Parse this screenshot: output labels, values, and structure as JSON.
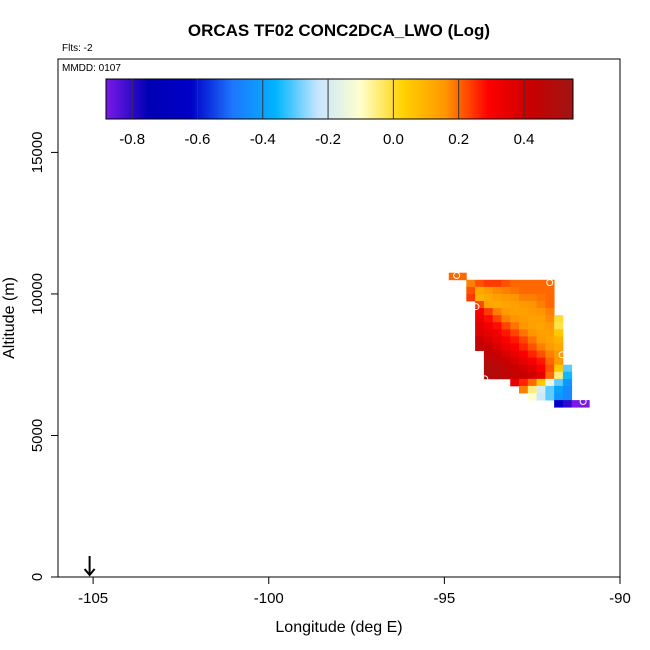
{
  "chart_data": {
    "type": "heatmap",
    "title": "ORCAS TF02 CONC2DCA_LWO (Log)",
    "flights_note": "Flts: -2",
    "date_note": "MMDD: 0107",
    "xlabel": "Longitude (deg E)",
    "ylabel": "Altitude (m)",
    "xlim": [
      -106,
      -90
    ],
    "ylim": [
      0,
      18300
    ],
    "x_ticks": [
      -105,
      -100,
      -95,
      -90
    ],
    "x_tick_labels": [
      "-105",
      "-100",
      "-95",
      "-90"
    ],
    "y_ticks": [
      0,
      5000,
      10000,
      15000
    ],
    "y_tick_labels": [
      "0",
      "5000",
      "10000",
      "15000"
    ],
    "colorbar": {
      "range": [
        -0.88,
        0.55
      ],
      "ticks": [
        -0.8,
        -0.6,
        -0.4,
        -0.2,
        0.0,
        0.2,
        0.4
      ],
      "tick_labels": [
        "-0.8",
        "-0.6",
        "-0.4",
        "-0.2",
        "0.0",
        "0.2",
        "0.4"
      ],
      "colors": [
        "#7a1ae8",
        "#0000b4",
        "#0000c8",
        "#1e78ff",
        "#00b4ff",
        "#c8e6ff",
        "#ffffcc",
        "#ffd200",
        "#ff9600",
        "#ff0000",
        "#c80000",
        "#a01414"
      ]
    },
    "marker": {
      "x": -105.1,
      "label": "takeoff location arrow"
    },
    "cell_size": {
      "dx": 0.25,
      "dy": 250
    },
    "cells": [
      [
        -94.75,
        10625,
        0.2
      ],
      [
        -94.5,
        10625,
        0.2
      ],
      [
        -94.25,
        10375,
        0.18
      ],
      [
        -94.0,
        10375,
        0.22
      ],
      [
        -93.75,
        10375,
        0.24
      ],
      [
        -93.5,
        10375,
        0.24
      ],
      [
        -93.25,
        10375,
        0.22
      ],
      [
        -93.0,
        10375,
        0.2
      ],
      [
        -92.75,
        10375,
        0.2
      ],
      [
        -92.5,
        10375,
        0.2
      ],
      [
        -92.25,
        10375,
        0.2
      ],
      [
        -92.0,
        10375,
        0.2
      ],
      [
        -94.25,
        10125,
        0.22
      ],
      [
        -94.0,
        10125,
        0.12
      ],
      [
        -93.75,
        10125,
        0.15
      ],
      [
        -93.5,
        10125,
        0.17
      ],
      [
        -93.25,
        10125,
        0.18
      ],
      [
        -93.0,
        10125,
        0.19
      ],
      [
        -92.75,
        10125,
        0.2
      ],
      [
        -92.5,
        10125,
        0.2
      ],
      [
        -92.25,
        10125,
        0.2
      ],
      [
        -92.0,
        10125,
        0.2
      ],
      [
        -94.25,
        9875,
        0.24
      ],
      [
        -94.0,
        9875,
        0.1
      ],
      [
        -93.75,
        9875,
        0.12
      ],
      [
        -93.5,
        9875,
        0.14
      ],
      [
        -93.25,
        9875,
        0.15
      ],
      [
        -93.0,
        9875,
        0.16
      ],
      [
        -92.75,
        9875,
        0.18
      ],
      [
        -92.5,
        9875,
        0.18
      ],
      [
        -92.25,
        9875,
        0.19
      ],
      [
        -92.0,
        9875,
        0.2
      ],
      [
        -94.0,
        9625,
        0.23
      ],
      [
        -93.75,
        9625,
        0.13
      ],
      [
        -93.5,
        9625,
        0.12
      ],
      [
        -93.25,
        9625,
        0.13
      ],
      [
        -93.0,
        9625,
        0.14
      ],
      [
        -92.75,
        9625,
        0.15
      ],
      [
        -92.5,
        9625,
        0.16
      ],
      [
        -92.25,
        9625,
        0.18
      ],
      [
        -92.0,
        9625,
        0.2
      ],
      [
        -94.0,
        9375,
        0.3
      ],
      [
        -93.75,
        9375,
        0.24
      ],
      [
        -93.5,
        9375,
        0.18
      ],
      [
        -93.25,
        9375,
        0.15
      ],
      [
        -93.0,
        9375,
        0.14
      ],
      [
        -92.75,
        9375,
        0.14
      ],
      [
        -92.5,
        9375,
        0.15
      ],
      [
        -92.25,
        9375,
        0.16
      ],
      [
        -92.0,
        9375,
        0.18
      ],
      [
        -94.0,
        9125,
        0.34
      ],
      [
        -93.75,
        9125,
        0.28
      ],
      [
        -93.5,
        9125,
        0.23
      ],
      [
        -93.25,
        9125,
        0.18
      ],
      [
        -93.0,
        9125,
        0.16
      ],
      [
        -92.75,
        9125,
        0.15
      ],
      [
        -92.5,
        9125,
        0.14
      ],
      [
        -92.25,
        9125,
        0.14
      ],
      [
        -92.0,
        9125,
        0.17
      ],
      [
        -91.75,
        9125,
        0.0
      ],
      [
        -94.0,
        8875,
        0.36
      ],
      [
        -93.75,
        8875,
        0.32
      ],
      [
        -93.5,
        8875,
        0.28
      ],
      [
        -93.25,
        8875,
        0.23
      ],
      [
        -93.0,
        8875,
        0.19
      ],
      [
        -92.75,
        8875,
        0.16
      ],
      [
        -92.5,
        8875,
        0.14
      ],
      [
        -92.25,
        8875,
        0.13
      ],
      [
        -92.0,
        8875,
        0.15
      ],
      [
        -91.75,
        8875,
        -0.02
      ],
      [
        -94.0,
        8625,
        0.38
      ],
      [
        -93.75,
        8625,
        0.35
      ],
      [
        -93.5,
        8625,
        0.32
      ],
      [
        -93.25,
        8625,
        0.27
      ],
      [
        -93.0,
        8625,
        0.23
      ],
      [
        -92.75,
        8625,
        0.19
      ],
      [
        -92.5,
        8625,
        0.16
      ],
      [
        -92.25,
        8625,
        0.14
      ],
      [
        -92.0,
        8625,
        0.14
      ],
      [
        -91.75,
        8625,
        0.05
      ],
      [
        -94.0,
        8375,
        0.42
      ],
      [
        -93.75,
        8375,
        0.38
      ],
      [
        -93.5,
        8375,
        0.34
      ],
      [
        -93.25,
        8375,
        0.3
      ],
      [
        -93.0,
        8375,
        0.27
      ],
      [
        -92.75,
        8375,
        0.23
      ],
      [
        -92.5,
        8375,
        0.19
      ],
      [
        -92.25,
        8375,
        0.15
      ],
      [
        -92.0,
        8375,
        0.13
      ],
      [
        -91.75,
        8375,
        0.1
      ],
      [
        -94.0,
        8125,
        0.45
      ],
      [
        -93.75,
        8125,
        0.42
      ],
      [
        -93.5,
        8125,
        0.38
      ],
      [
        -93.25,
        8125,
        0.33
      ],
      [
        -93.0,
        8125,
        0.3
      ],
      [
        -92.75,
        8125,
        0.26
      ],
      [
        -92.5,
        8125,
        0.22
      ],
      [
        -92.25,
        8125,
        0.18
      ],
      [
        -92.0,
        8125,
        0.15
      ],
      [
        -91.75,
        8125,
        0.12
      ],
      [
        -93.75,
        7875,
        0.44
      ],
      [
        -93.5,
        7875,
        0.42
      ],
      [
        -93.25,
        7875,
        0.38
      ],
      [
        -93.0,
        7875,
        0.34
      ],
      [
        -92.75,
        7875,
        0.3
      ],
      [
        -92.5,
        7875,
        0.26
      ],
      [
        -92.25,
        7875,
        0.22
      ],
      [
        -92.0,
        7875,
        0.18
      ],
      [
        -91.75,
        7875,
        0.15
      ],
      [
        -93.75,
        7625,
        0.48
      ],
      [
        -93.5,
        7625,
        0.45
      ],
      [
        -93.25,
        7625,
        0.42
      ],
      [
        -93.0,
        7625,
        0.38
      ],
      [
        -92.75,
        7625,
        0.34
      ],
      [
        -92.5,
        7625,
        0.31
      ],
      [
        -92.25,
        7625,
        0.27
      ],
      [
        -92.0,
        7625,
        0.2
      ],
      [
        -91.75,
        7625,
        0.15
      ],
      [
        -93.75,
        7375,
        0.5
      ],
      [
        -93.5,
        7375,
        0.48
      ],
      [
        -93.25,
        7375,
        0.45
      ],
      [
        -93.0,
        7375,
        0.42
      ],
      [
        -92.75,
        7375,
        0.4
      ],
      [
        -92.5,
        7375,
        0.36
      ],
      [
        -92.25,
        7375,
        0.3
      ],
      [
        -92.0,
        7375,
        0.22
      ],
      [
        -91.75,
        7375,
        0.05
      ],
      [
        -91.5,
        7375,
        -0.3
      ],
      [
        -93.75,
        7125,
        0.5
      ],
      [
        -93.5,
        7125,
        0.48
      ],
      [
        -93.25,
        7125,
        0.46
      ],
      [
        -93.0,
        7125,
        0.43
      ],
      [
        -92.75,
        7125,
        0.42
      ],
      [
        -92.5,
        7125,
        0.4
      ],
      [
        -92.25,
        7125,
        0.35
      ],
      [
        -92.0,
        7125,
        0.2
      ],
      [
        -91.75,
        7125,
        -0.05
      ],
      [
        -91.5,
        7125,
        -0.35
      ],
      [
        -93.0,
        6875,
        0.34
      ],
      [
        -92.75,
        6875,
        0.26
      ],
      [
        -92.5,
        6875,
        0.2
      ],
      [
        -92.25,
        6875,
        0.05
      ],
      [
        -92.0,
        6875,
        -0.15
      ],
      [
        -91.75,
        6875,
        -0.3
      ],
      [
        -91.5,
        6875,
        -0.42
      ],
      [
        -92.75,
        6625,
        0.18
      ],
      [
        -92.5,
        6625,
        -0.05
      ],
      [
        -92.25,
        6625,
        -0.2
      ],
      [
        -92.0,
        6625,
        -0.3
      ],
      [
        -91.75,
        6625,
        -0.4
      ],
      [
        -91.5,
        6625,
        -0.45
      ],
      [
        -92.5,
        6375,
        -0.1
      ],
      [
        -92.25,
        6375,
        -0.22
      ],
      [
        -92.0,
        6375,
        -0.3
      ],
      [
        -91.75,
        6375,
        -0.42
      ],
      [
        -91.5,
        6375,
        -0.45
      ],
      [
        -91.75,
        6125,
        -0.62
      ],
      [
        -91.5,
        6125,
        -0.8
      ],
      [
        -91.25,
        6125,
        -0.88
      ],
      [
        -91.0,
        6125,
        -0.88
      ]
    ],
    "open_circles": [
      [
        -94.65,
        10650
      ],
      [
        -92.0,
        10400
      ],
      [
        -94.1,
        9550
      ],
      [
        -91.65,
        7850
      ],
      [
        -93.85,
        7000
      ],
      [
        -91.05,
        6200
      ]
    ]
  }
}
